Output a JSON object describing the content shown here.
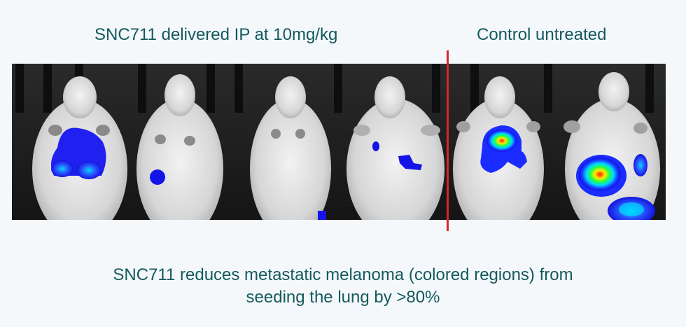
{
  "headings": {
    "treated": "SNC711 delivered IP at 10mg/kg",
    "control": "Control untreated"
  },
  "caption": {
    "line1": "SNC711 reduces metastatic melanoma (colored regions) from",
    "line2": "seeding the lung by >80%"
  },
  "colors": {
    "text": "#15595e",
    "divider": "#d8262b",
    "background": "#f4f8fb",
    "signal_low": "#1a1aff",
    "signal_mid": "#00e0ff",
    "signal_high": "#ff1a00"
  },
  "groups": {
    "treated_count": 4,
    "control_count": 2
  }
}
